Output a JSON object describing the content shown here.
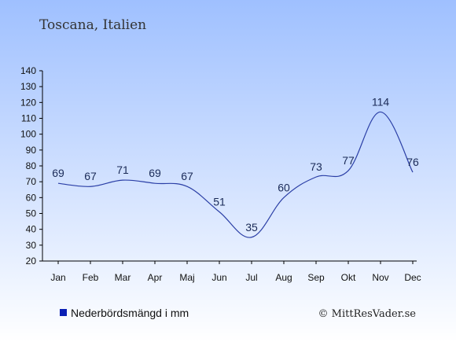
{
  "header": {
    "subtitle": "Toscana, Italien"
  },
  "legend": {
    "label": "Nederbördsmängd i mm",
    "color": "#0a1fb5"
  },
  "credit": {
    "text": "© MittResVader.se"
  },
  "colors": {
    "line": "#2b3fa6",
    "label": "#1a2a57",
    "axis": "#000000",
    "bg_top": "#9fc0ff",
    "bg_bottom": "#ffffff"
  },
  "chart_data": {
    "type": "line",
    "title": "",
    "xlabel": "",
    "ylabel": "",
    "categories": [
      "Jan",
      "Feb",
      "Mar",
      "Apr",
      "Maj",
      "Jun",
      "Jul",
      "Aug",
      "Sep",
      "Okt",
      "Nov",
      "Dec"
    ],
    "series": [
      {
        "name": "Nederbördsmängd i mm",
        "values": [
          69,
          67,
          71,
          69,
          67,
          51,
          35,
          60,
          73,
          77,
          114,
          76
        ]
      }
    ],
    "ylim": [
      20,
      140
    ],
    "yticks": [
      20,
      30,
      40,
      50,
      60,
      70,
      80,
      90,
      100,
      110,
      120,
      130,
      140
    ],
    "grid": false,
    "legend_position": "bottom-left"
  }
}
